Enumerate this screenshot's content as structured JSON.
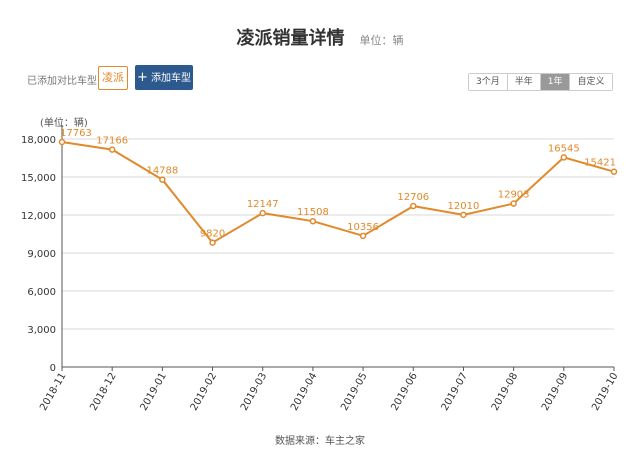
{
  "header": {
    "title": "凌派销量详情",
    "unit": "单位：辆"
  },
  "compare": {
    "label": "已添加对比车型:",
    "model": "凌派",
    "add_label": "添加车型"
  },
  "range_tabs": [
    {
      "label": "3个月",
      "active": false
    },
    {
      "label": "半年",
      "active": false
    },
    {
      "label": "1年",
      "active": true
    },
    {
      "label": "自定义",
      "active": false
    }
  ],
  "footer": {
    "source": "数据来源：车主之家"
  },
  "chart_data": {
    "type": "line",
    "ylabel": "(单位：辆)",
    "x": [
      "2018-11",
      "2018-12",
      "2019-01",
      "2019-02",
      "2019-03",
      "2019-04",
      "2019-05",
      "2019-06",
      "2019-07",
      "2019-08",
      "2019-09",
      "2019-10"
    ],
    "values": [
      17763,
      17166,
      14788,
      9820,
      12147,
      11508,
      10356,
      12706,
      12010,
      12903,
      16545,
      15421
    ],
    "yticks": [
      "0",
      "3,000",
      "6,000",
      "9,000",
      "12,000",
      "15,000",
      "18,000"
    ],
    "ylim": [
      0,
      18000
    ],
    "grid": true,
    "color": "#e08a2c"
  }
}
